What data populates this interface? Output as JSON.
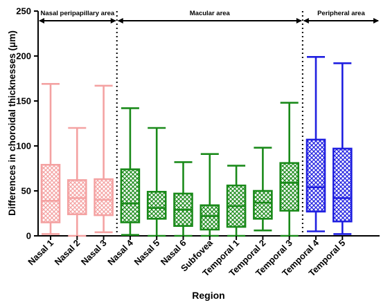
{
  "chart_data": {
    "type": "boxplot",
    "xlabel": "Region",
    "ylabel": "Differences in choroidal thicknesses (μm)",
    "ylim": [
      0,
      250
    ],
    "yticks": [
      0,
      50,
      100,
      150,
      200,
      250
    ],
    "grid": false,
    "regions": [
      {
        "label": "Nasal peripapillary area",
        "from": 0,
        "to": 2
      },
      {
        "label": "Macular area",
        "from": 3,
        "to": 9
      },
      {
        "label": "Peripheral area",
        "from": 10,
        "to": 11
      }
    ],
    "boxes": [
      {
        "category": "Nasal 1",
        "min": 2,
        "q1": 15,
        "median": 39,
        "q3": 79,
        "max": 169,
        "color": "#f4a2a2"
      },
      {
        "category": "Nasal 2",
        "min": 0,
        "q1": 24,
        "median": 42,
        "q3": 62,
        "max": 120,
        "color": "#f4a2a2"
      },
      {
        "category": "Nasal 3",
        "min": 4,
        "q1": 23,
        "median": 40,
        "q3": 63,
        "max": 167,
        "color": "#f4a2a2"
      },
      {
        "category": "Nasal 4",
        "min": 1,
        "q1": 15,
        "median": 36,
        "q3": 74,
        "max": 142,
        "color": "#1a8a1a"
      },
      {
        "category": "Nasal 5",
        "min": 0,
        "q1": 19,
        "median": 31,
        "q3": 49,
        "max": 120,
        "color": "#1a8a1a"
      },
      {
        "category": "Nasal 6",
        "min": 0,
        "q1": 11,
        "median": 29,
        "q3": 47,
        "max": 82,
        "color": "#1a8a1a"
      },
      {
        "category": "Subfovea",
        "min": 0,
        "q1": 7,
        "median": 22,
        "q3": 34,
        "max": 91,
        "color": "#1a8a1a"
      },
      {
        "category": "Temporal 1",
        "min": 0,
        "q1": 10,
        "median": 33,
        "q3": 56,
        "max": 78,
        "color": "#1a8a1a"
      },
      {
        "category": "Temporal 2",
        "min": 6,
        "q1": 19,
        "median": 37,
        "q3": 50,
        "max": 98,
        "color": "#1a8a1a"
      },
      {
        "category": "Temporal 3",
        "min": 0,
        "q1": 28,
        "median": 59,
        "q3": 81,
        "max": 148,
        "color": "#1a8a1a"
      },
      {
        "category": "Temporal 4",
        "min": 5,
        "q1": 27,
        "median": 54,
        "q3": 107,
        "max": 199,
        "color": "#1f1fe0"
      },
      {
        "category": "Temporal 5",
        "min": 2,
        "q1": 16,
        "median": 42,
        "q3": 97,
        "max": 192,
        "color": "#1f1fe0"
      }
    ]
  }
}
